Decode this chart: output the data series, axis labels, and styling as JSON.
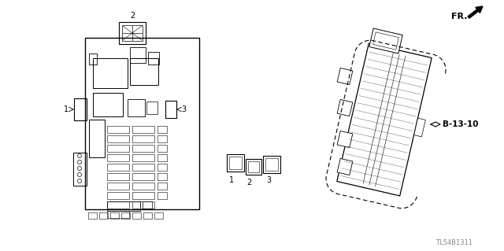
{
  "bg_color": "#ffffff",
  "line_color": "#000000",
  "gray_color": "#888888",
  "title_text": "TL54B1311",
  "fr_label": "FR.",
  "b_label": "B-13-10",
  "fig_width": 6.4,
  "fig_height": 3.19,
  "label1": "1",
  "label2": "2",
  "label3": "3"
}
